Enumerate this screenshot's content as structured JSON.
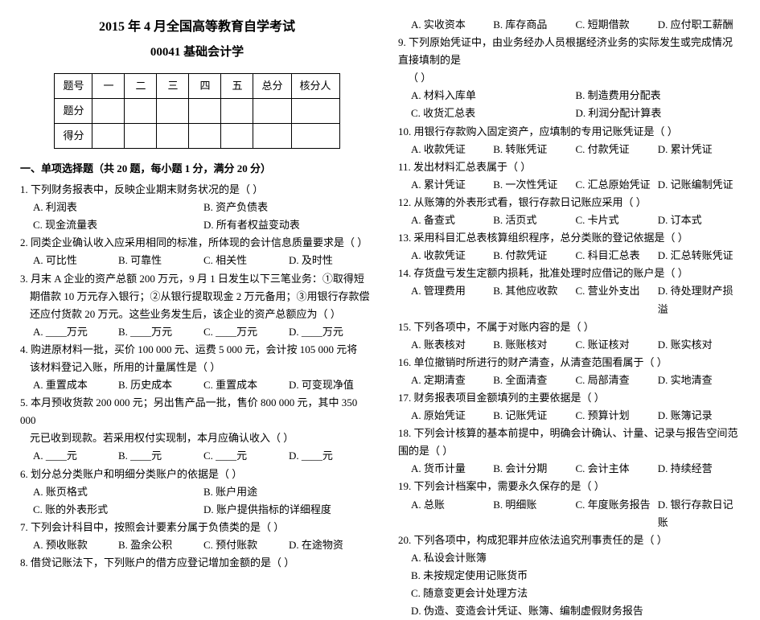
{
  "header": {
    "title": "2015 年 4 月全国高等教育自学考试",
    "subtitle": "00041 基础会计学"
  },
  "scoreTable": {
    "row1": [
      "题号",
      "一",
      "二",
      "三",
      "四",
      "五",
      "总分",
      "核分人"
    ],
    "row2": "题分",
    "row3": "得分"
  },
  "section1": "一、单项选择题（共 20 题，每小题 1 分，满分 20 分）",
  "q1": {
    "stem": "1. 下列财务报表中，反映企业期末财务状况的是（  ）",
    "a": "A. 利润表",
    "b": "B. 资产负债表",
    "c": "C. 现金流量表",
    "d": "D. 所有者权益变动表"
  },
  "q2": {
    "stem": "2. 同类企业确认收入应采用相同的标准，所体现的会计信息质量要求是（  ）",
    "a": "A. 可比性",
    "b": "B. 可靠性",
    "c": "C. 相关性",
    "d": "D. 及时性"
  },
  "q3": {
    "stem": "3. 月末 A 企业的资产总额 200 万元，9 月 1 日发生以下三笔业务：①取得短",
    "l2": "期借款 10 万元存入银行；②从银行提取现金 2 万元备用；③用银行存款偿",
    "l3": "还应付货款 20 万元。这些业务发生后，该企业的资产总额应为（  ）",
    "a": "A. ____万元",
    "b": "B. ____万元",
    "c": "C. ____万元",
    "d": "D. ____万元"
  },
  "q4": {
    "stem": "4. 购进原材料一批，买价 100 000 元、运费 5 000 元，会计按 105 000 元将",
    "l2": "该材料登记入账，所用的计量属性是（  ）",
    "a": "A. 重置成本",
    "b": "B. 历史成本",
    "c": "C. 重置成本",
    "d": "D. 可变现净值"
  },
  "q5": {
    "stem": "5. 本月预收货款 200 000 元；另出售产品一批，售价 800 000 元，其中 350 000",
    "l2": "元已收到现款。若采用权付实现制，本月应确认收入（  ）",
    "a": "A. ____元",
    "b": "B. ____元",
    "c": "C. ____元",
    "d": "D. ____元"
  },
  "q6": {
    "stem": "6. 划分总分类账户和明细分类账户的依据是（  ）",
    "a": "A. 账页格式",
    "b": "B. 账户用途",
    "c": "C. 账的外表形式",
    "d": "D. 账户提供指标的详细程度"
  },
  "q7": {
    "stem": "7. 下列会计科目中，按照会计要素分属于负债类的是（  ）",
    "a": "A. 预收账款",
    "b": "B. 盈余公积",
    "c": "C. 预付账款",
    "d": "D. 在途物资"
  },
  "q8": {
    "stem": "8. 借贷记账法下，下列账户的借方应登记增加金额的是（  ）",
    "a": "A. 实收资本",
    "b": "B. 库存商品",
    "c": "C. 短期借款",
    "d": "D. 应付职工薪酬"
  },
  "q9": {
    "stem": "9. 下列原始凭证中，由业务经办人员根据经济业务的实际发生或完成情况直接填制的是",
    "l2": "（  ）",
    "a": "A. 材料入库单",
    "b": "B. 制造费用分配表",
    "c": "C. 收货汇总表",
    "d": "D. 利润分配计算表"
  },
  "q10": {
    "stem": "10. 用银行存款购入固定资产，应填制的专用记账凭证是（  ）",
    "a": "A. 收款凭证",
    "b": "B. 转账凭证",
    "c": "C. 付款凭证",
    "d": "D. 累计凭证"
  },
  "q11": {
    "stem": "11. 发出材料汇总表属于（  ）",
    "a": "A. 累计凭证",
    "b": "B. 一次性凭证",
    "c": "C. 汇总原始凭证",
    "d": "D. 记账编制凭证"
  },
  "q12": {
    "stem": "12. 从账簿的外表形式看，银行存款日记账应采用（  ）",
    "a": "A. 备查式",
    "b": "B. 活页式",
    "c": "C. 卡片式",
    "d": "D. 订本式"
  },
  "q13": {
    "stem": "13. 采用科目汇总表核算组织程序，总分类账的登记依据是（  ）",
    "a": "A. 收款凭证",
    "b": "B. 付款凭证",
    "c": "C. 科目汇总表",
    "d": "D. 汇总转账凭证"
  },
  "q14": {
    "stem": "14. 存货盘亏发生定额内损耗，批准处理时应借记的账户是（  ）",
    "a": "A. 管理费用",
    "b": "B. 其他应收款",
    "c": "C. 营业外支出",
    "d": "D. 待处理财产损溢"
  },
  "q15": {
    "stem": "15. 下列各项中，不属于对账内容的是（  ）",
    "a": "A. 账表核对",
    "b": "B. 账账核对",
    "c": "C. 账证核对",
    "d": "D. 账实核对"
  },
  "q16": {
    "stem": "16. 单位撤销时所进行的财产清查，从清查范围看属于（  ）",
    "a": "A. 定期清查",
    "b": "B. 全面清查",
    "c": "C. 局部清查",
    "d": "D. 实地清查"
  },
  "q17": {
    "stem": "17. 财务报表项目金额填列的主要依据是（  ）",
    "a": "A. 原始凭证",
    "b": "B. 记账凭证",
    "c": "C. 预算计划",
    "d": "D. 账簿记录"
  },
  "q18": {
    "stem": "18. 下列会计核算的基本前提中，明确会计确认、计量、记录与报告空间范围的是（  ）",
    "a": "A. 货币计量",
    "b": "B. 会计分期",
    "c": "C. 会计主体",
    "d": "D. 持续经营"
  },
  "q19": {
    "stem": "19. 下列会计档案中，需要永久保存的是（  ）",
    "a": "A. 总账",
    "b": "B. 明细账",
    "c": "C. 年度账务报告",
    "d": "D. 银行存款日记账"
  },
  "q20": {
    "stem": "20. 下列各项中，构成犯罪并应依法追究刑事责任的是（  ）",
    "a": "A. 私设会计账簿",
    "b": "B. 未按规定使用记账货币",
    "c": "C. 随意变更会计处理方法",
    "d": "D. 伪造、变造会计凭证、账簿、编制虚假财务报告"
  }
}
